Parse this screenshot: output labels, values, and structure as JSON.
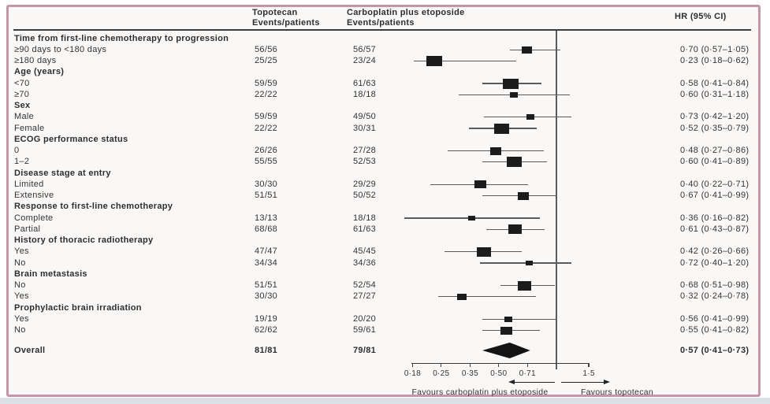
{
  "figure": {
    "columns": {
      "topotecan_line1": "Topotecan",
      "topotecan_line2": "Events/patients",
      "carboplatin_line1": "Carboplatin plus etoposide",
      "carboplatin_line2": "Events/patients",
      "hr_header": "HR (95% CI)"
    },
    "footer": {
      "favours_left": "Favours carboplatin plus etoposide",
      "favours_right": "Favours topotecan"
    },
    "colors": {
      "frame_border": "#c695a7",
      "background": "#faf8f7",
      "marker": "#1c1c1c",
      "text": "#333333"
    }
  },
  "chart_data": {
    "type": "scatter",
    "subtype": "forest-plot",
    "x_axis": {
      "scale": "log",
      "tick_labels": [
        "0·18",
        "0·25",
        "0·35",
        "0·50",
        "0·71",
        "1·5"
      ],
      "tick_values": [
        0.177,
        0.25,
        0.354,
        0.5,
        0.707,
        1.48
      ],
      "reference_line": 1.0
    },
    "rows": [
      {
        "kind": "group",
        "label": "Time from first-line chemotherapy to progression"
      },
      {
        "kind": "item",
        "label": "≥90 days to <180 days",
        "topotecan": "56/56",
        "carboplatin": "56/57",
        "hr": 0.7,
        "ci_low": 0.57,
        "ci_high": 1.05,
        "hr_text": "0·70 (0·57–1·05)",
        "w": 13
      },
      {
        "kind": "item",
        "label": "≥180 days",
        "topotecan": "25/25",
        "carboplatin": "23/24",
        "hr": 0.23,
        "ci_low": 0.18,
        "ci_high": 0.62,
        "hr_text": "0·23 (0·18–0·62)",
        "w": 20
      },
      {
        "kind": "group",
        "label": "Age (years)"
      },
      {
        "kind": "item",
        "label": "<70",
        "topotecan": "59/59",
        "carboplatin": "61/63",
        "hr": 0.58,
        "ci_low": 0.41,
        "ci_high": 0.84,
        "hr_text": "0·58 (0·41–0·84)",
        "w": 20
      },
      {
        "kind": "item",
        "label": "≥70",
        "topotecan": "22/22",
        "carboplatin": "18/18",
        "hr": 0.6,
        "ci_low": 0.31,
        "ci_high": 1.18,
        "hr_text": "0·60 (0·31–1·18)",
        "w": 10
      },
      {
        "kind": "group",
        "label": "Sex"
      },
      {
        "kind": "item",
        "label": "Male",
        "topotecan": "59/59",
        "carboplatin": "49/50",
        "hr": 0.73,
        "ci_low": 0.42,
        "ci_high": 1.2,
        "hr_text": "0·73 (0·42–1·20)",
        "w": 10
      },
      {
        "kind": "item",
        "label": "Female",
        "topotecan": "22/22",
        "carboplatin": "30/31",
        "hr": 0.52,
        "ci_low": 0.35,
        "ci_high": 0.79,
        "hr_text": "0·52 (0·35–0·79)",
        "w": 19
      },
      {
        "kind": "group",
        "label": "ECOG performance status"
      },
      {
        "kind": "item",
        "label": "0",
        "topotecan": "26/26",
        "carboplatin": "27/28",
        "hr": 0.48,
        "ci_low": 0.27,
        "ci_high": 0.86,
        "hr_text": "0·48 (0·27–0·86)",
        "w": 14
      },
      {
        "kind": "item",
        "label": "1–2",
        "topotecan": "55/55",
        "carboplatin": "52/53",
        "hr": 0.6,
        "ci_low": 0.41,
        "ci_high": 0.89,
        "hr_text": "0·60 (0·41–0·89)",
        "w": 19
      },
      {
        "kind": "group",
        "label": "Disease stage at entry"
      },
      {
        "kind": "item",
        "label": "Limited",
        "topotecan": "30/30",
        "carboplatin": "29/29",
        "hr": 0.4,
        "ci_low": 0.22,
        "ci_high": 0.71,
        "hr_text": "0·40 (0·22–0·71)",
        "w": 15
      },
      {
        "kind": "item",
        "label": "Extensive",
        "topotecan": "51/51",
        "carboplatin": "50/52",
        "hr": 0.67,
        "ci_low": 0.41,
        "ci_high": 0.99,
        "hr_text": "0·67 (0·41–0·99)",
        "w": 14
      },
      {
        "kind": "group",
        "label": "Response to first-line chemotherapy"
      },
      {
        "kind": "item",
        "label": "Complete",
        "topotecan": "13/13",
        "carboplatin": "18/18",
        "hr": 0.36,
        "ci_low": 0.16,
        "ci_high": 0.82,
        "hr_text": "0·36 (0·16–0·82)",
        "w": 9
      },
      {
        "kind": "item",
        "label": "Partial",
        "topotecan": "68/68",
        "carboplatin": "61/63",
        "hr": 0.61,
        "ci_low": 0.43,
        "ci_high": 0.87,
        "hr_text": "0·61 (0·43–0·87)",
        "w": 17
      },
      {
        "kind": "group",
        "label": "History of thoracic radiotherapy"
      },
      {
        "kind": "item",
        "label": "Yes",
        "topotecan": "47/47",
        "carboplatin": "45/45",
        "hr": 0.42,
        "ci_low": 0.26,
        "ci_high": 0.66,
        "hr_text": "0·42 (0·26–0·66)",
        "w": 18
      },
      {
        "kind": "item",
        "label": "No",
        "topotecan": "34/34",
        "carboplatin": "34/36",
        "hr": 0.72,
        "ci_low": 0.4,
        "ci_high": 1.2,
        "hr_text": "0·72 (0·40–1·20)",
        "w": 9
      },
      {
        "kind": "group",
        "label": "Brain metastasis"
      },
      {
        "kind": "item",
        "label": "No",
        "topotecan": "51/51",
        "carboplatin": "52/54",
        "hr": 0.68,
        "ci_low": 0.51,
        "ci_high": 0.98,
        "hr_text": "0·68 (0·51–0·98)",
        "w": 17
      },
      {
        "kind": "item",
        "label": "Yes",
        "topotecan": "30/30",
        "carboplatin": "27/27",
        "hr": 0.32,
        "ci_low": 0.24,
        "ci_high": 0.78,
        "hr_text": "0·32 (0·24–0·78)",
        "w": 12
      },
      {
        "kind": "group",
        "label": "Prophylactic brain irradiation"
      },
      {
        "kind": "item",
        "label": "Yes",
        "topotecan": "19/19",
        "carboplatin": "20/20",
        "hr": 0.56,
        "ci_low": 0.41,
        "ci_high": 0.99,
        "hr_text": "0·56 (0·41–0·99)",
        "w": 10
      },
      {
        "kind": "item",
        "label": "No",
        "topotecan": "62/62",
        "carboplatin": "59/61",
        "hr": 0.55,
        "ci_low": 0.41,
        "ci_high": 0.82,
        "hr_text": "0·55 (0·41–0·82)",
        "w": 15
      }
    ],
    "overall": {
      "label": "Overall",
      "topotecan": "81/81",
      "carboplatin": "79/81",
      "hr": 0.57,
      "ci_low": 0.41,
      "ci_high": 0.73,
      "hr_text": "0·57 (0·41–0·73)"
    }
  }
}
